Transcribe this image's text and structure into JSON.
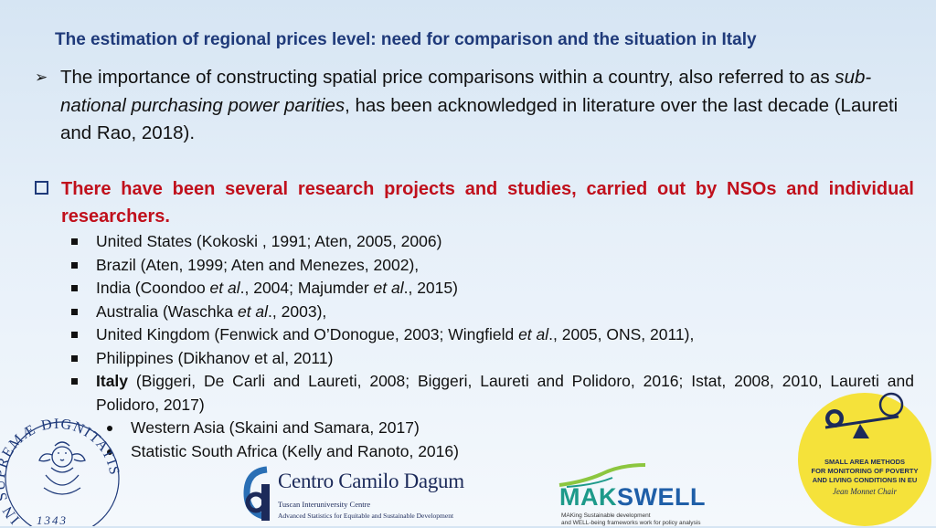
{
  "title": "The estimation of regional prices level: need for comparison and the situation in Italy",
  "para1": {
    "before": "The importance of constructing spatial price comparisons within a country, also referred to as ",
    "italic": "sub-national purchasing power parities",
    "after": ", has been acknowledged in literature over the last decade (Laureti and Rao, 2018)."
  },
  "para2": "There have been several research projects and studies, carried out by NSOs and individual researchers.",
  "bullets": [
    {
      "pre": "United States (Kokoski , 1991; Aten, 2005, 2006)"
    },
    {
      "pre": "Brazil (Aten, 1999; Aten and Menezes, 2002),"
    },
    {
      "pre": "India (Coondoo ",
      "it1": "et al",
      "mid": "., 2004; Majumder ",
      "it2": "et al",
      "post": "., 2015)"
    },
    {
      "pre": "Australia (Waschka ",
      "it1": "et al",
      "mid": "., 2003),"
    },
    {
      "pre": "United Kingdom (Fenwick and O’Donogue, 2003; Wingfield ",
      "it1": "et al",
      "mid": "., 2005, ONS, 2011),"
    },
    {
      "pre": "Philippines (Dikhanov et al, 2011)"
    },
    {
      "bold": "Italy",
      "pre": " (Biggeri, De Carli and Laureti, 2008; Biggeri, Laureti and Polidoro, 2016; Istat, 2008, 2010, Laureti and Polidoro, 2017)"
    }
  ],
  "subbullets": [
    "Western Asia (Skaini and Samara, 2017)",
    "Statistic South Africa (Kelly and Ranoto, 2016)"
  ],
  "logos": {
    "seal": {
      "text": "IN SUPREMÆ DIGNITATIS",
      "year": "1343"
    },
    "camilo_dagum": {
      "name": "Centro Camilo Dagum",
      "sub1": "Tuscan Interuniversity Centre",
      "sub2": "Advanced Statistics for Equitable and Sustainable Development"
    },
    "makswell": {
      "mak": "MAK",
      "swell": "SWELL",
      "sub1": "MAKing Sustainable development",
      "sub2": "and WELL-being frameworks work for policy analysis"
    },
    "sam": {
      "line1": "SMALL AREA METHODS",
      "line2": "FOR MONITORING OF POVERTY",
      "line3": "AND LIVING CONDITIONS IN EU",
      "line4": "Jean Monnet Chair"
    }
  },
  "colors": {
    "title": "#1f3a7a",
    "emphasis": "#c0101c",
    "badge": "#f5e23a"
  }
}
